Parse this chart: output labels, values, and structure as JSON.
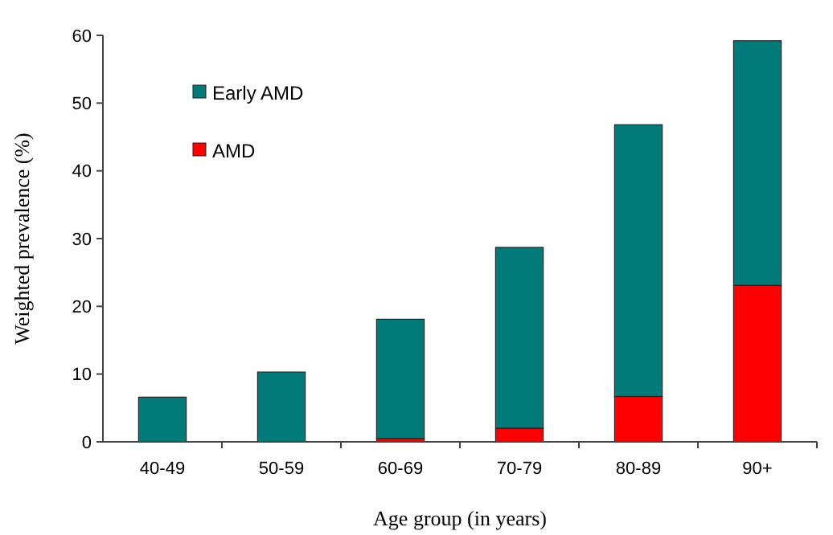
{
  "chart_data": {
    "type": "bar",
    "stacked": true,
    "xlabel": "Age group (in years)",
    "ylabel": "Weighted prevalence (%)",
    "categories": [
      "40-49",
      "50-59",
      "60-69",
      "70-79",
      "80-89",
      "90+"
    ],
    "series": [
      {
        "name": "AMD",
        "color": "#ff0000",
        "values": [
          0,
          0,
          0.5,
          2.0,
          6.7,
          23.1
        ]
      },
      {
        "name": "Early AMD",
        "color": "#007b79",
        "values": [
          6.6,
          10.3,
          17.6,
          26.7,
          40.1,
          36.1
        ]
      }
    ],
    "ylim": [
      0,
      60
    ],
    "yticks": [
      0,
      10,
      20,
      30,
      40,
      50,
      60
    ],
    "grid": false,
    "legend": "top left"
  }
}
